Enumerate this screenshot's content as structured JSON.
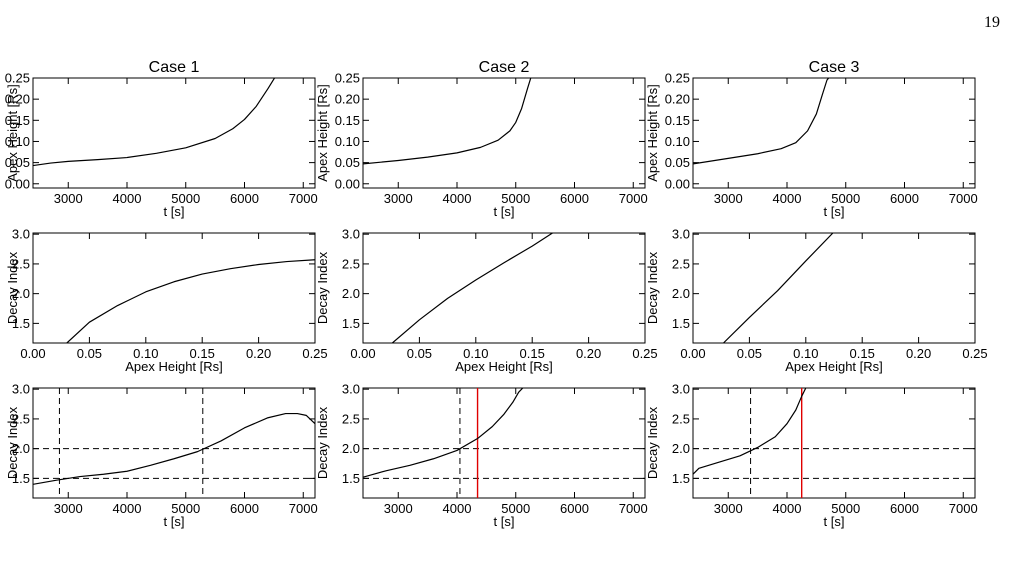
{
  "page": {
    "number": "19"
  },
  "chart_data": [
    {
      "type": "line",
      "panel": "case1-height",
      "title": "Case 1",
      "xlabel": "t [s]",
      "ylabel": "Apex Height [Rs]",
      "xlim": [
        2400,
        7200
      ],
      "ylim": [
        -0.01,
        0.25
      ],
      "xticks": [
        "3000",
        "4000",
        "5000",
        "6000",
        "7000"
      ],
      "yticks": [
        "0.00",
        "0.05",
        "0.10",
        "0.15",
        "0.20",
        "0.25"
      ],
      "series": [
        {
          "color": "#000000",
          "dash": "solid",
          "x": [
            2400,
            2700,
            3000,
            3500,
            4000,
            4500,
            5000,
            5500,
            5800,
            6000,
            6200,
            6400,
            6520
          ],
          "y": [
            0.043,
            0.049,
            0.053,
            0.057,
            0.062,
            0.072,
            0.085,
            0.107,
            0.13,
            0.152,
            0.183,
            0.225,
            0.252
          ]
        }
      ]
    },
    {
      "type": "line",
      "panel": "case2-height",
      "title": "Case 2",
      "xlabel": "t [s]",
      "ylabel": "Apex Height [Rs]",
      "xlim": [
        2400,
        7200
      ],
      "ylim": [
        -0.01,
        0.25
      ],
      "xticks": [
        "3000",
        "4000",
        "5000",
        "6000",
        "7000"
      ],
      "yticks": [
        "0.00",
        "0.05",
        "0.10",
        "0.15",
        "0.20",
        "0.25"
      ],
      "series": [
        {
          "color": "#000000",
          "dash": "solid",
          "x": [
            2400,
            3000,
            3500,
            4000,
            4400,
            4700,
            4900,
            5000,
            5100,
            5200,
            5260
          ],
          "y": [
            0.047,
            0.055,
            0.063,
            0.073,
            0.086,
            0.103,
            0.125,
            0.145,
            0.178,
            0.225,
            0.252
          ]
        }
      ]
    },
    {
      "type": "line",
      "panel": "case3-height",
      "title": "Case 3",
      "xlabel": "t [s]",
      "ylabel": "Apex Height [Rs]",
      "xlim": [
        2400,
        7200
      ],
      "ylim": [
        -0.01,
        0.25
      ],
      "xticks": [
        "3000",
        "4000",
        "5000",
        "6000",
        "7000"
      ],
      "yticks": [
        "0.00",
        "0.05",
        "0.10",
        "0.15",
        "0.20",
        "0.25"
      ],
      "series": [
        {
          "color": "#000000",
          "dash": "solid",
          "x": [
            2400,
            3000,
            3500,
            3900,
            4150,
            4350,
            4500,
            4600,
            4680,
            4720
          ],
          "y": [
            0.047,
            0.06,
            0.071,
            0.083,
            0.097,
            0.125,
            0.165,
            0.21,
            0.245,
            0.252
          ]
        }
      ]
    },
    {
      "type": "line",
      "panel": "case1-decay",
      "title": "",
      "xlabel": "Apex Height [Rs]",
      "ylabel": "Decay Index",
      "xlim": [
        0.0,
        0.25
      ],
      "ylim": [
        1.17,
        3.02
      ],
      "xticks": [
        "0.00",
        "0.05",
        "0.10",
        "0.15",
        "0.20",
        "0.25"
      ],
      "yticks": [
        "1.5",
        "2.0",
        "2.5",
        "3.0"
      ],
      "series": [
        {
          "color": "#000000",
          "dash": "solid",
          "x": [
            0.03,
            0.05,
            0.075,
            0.1,
            0.125,
            0.15,
            0.175,
            0.2,
            0.225,
            0.25
          ],
          "y": [
            1.17,
            1.52,
            1.8,
            2.03,
            2.2,
            2.33,
            2.42,
            2.49,
            2.54,
            2.57
          ]
        }
      ]
    },
    {
      "type": "line",
      "panel": "case2-decay",
      "title": "",
      "xlabel": "Apex Height [Rs]",
      "ylabel": "Decay Index",
      "xlim": [
        0.0,
        0.25
      ],
      "ylim": [
        1.17,
        3.02
      ],
      "xticks": [
        "0.00",
        "0.05",
        "0.10",
        "0.15",
        "0.20",
        "0.25"
      ],
      "yticks": [
        "1.5",
        "2.0",
        "2.5",
        "3.0"
      ],
      "series": [
        {
          "color": "#000000",
          "dash": "solid",
          "x": [
            0.026,
            0.05,
            0.075,
            0.1,
            0.125,
            0.15,
            0.168
          ],
          "y": [
            1.17,
            1.56,
            1.92,
            2.23,
            2.52,
            2.8,
            3.02
          ]
        }
      ]
    },
    {
      "type": "line",
      "panel": "case3-decay",
      "title": "",
      "xlabel": "Apex Height [Rs]",
      "ylabel": "Decay Index",
      "xlim": [
        0.0,
        0.25
      ],
      "ylim": [
        1.17,
        3.02
      ],
      "xticks": [
        "0.00",
        "0.05",
        "0.10",
        "0.15",
        "0.20",
        "0.25"
      ],
      "yticks": [
        "1.5",
        "2.0",
        "2.5",
        "3.0"
      ],
      "series": [
        {
          "color": "#000000",
          "dash": "solid",
          "x": [
            0.027,
            0.05,
            0.075,
            0.1,
            0.124
          ],
          "y": [
            1.17,
            1.6,
            2.05,
            2.55,
            3.02
          ]
        }
      ]
    },
    {
      "type": "line",
      "panel": "case1-time",
      "title": "",
      "xlabel": "t [s]",
      "ylabel": "Decay Index",
      "xlim": [
        2400,
        7200
      ],
      "ylim": [
        1.17,
        3.02
      ],
      "xticks": [
        "3000",
        "4000",
        "5000",
        "6000",
        "7000"
      ],
      "yticks": [
        "1.5",
        "2.0",
        "2.5",
        "3.0"
      ],
      "series": [
        {
          "color": "#000000",
          "dash": "solid",
          "x": [
            2400,
            2800,
            3200,
            3600,
            4000,
            4400,
            4800,
            5200,
            5600,
            6000,
            6400,
            6700,
            6900,
            7050,
            7200
          ],
          "y": [
            1.4,
            1.47,
            1.53,
            1.57,
            1.62,
            1.72,
            1.83,
            1.95,
            2.13,
            2.35,
            2.52,
            2.59,
            2.59,
            2.56,
            2.42
          ]
        }
      ],
      "reference_lines": [
        {
          "orientation": "horizontal",
          "value": 1.5,
          "color": "#000000",
          "dash": "dashed"
        },
        {
          "orientation": "horizontal",
          "value": 2.0,
          "color": "#000000",
          "dash": "dashed"
        },
        {
          "orientation": "vertical",
          "value": 2850,
          "color": "#000000",
          "dash": "dashed"
        },
        {
          "orientation": "vertical",
          "value": 5290,
          "color": "#000000",
          "dash": "dashed"
        }
      ]
    },
    {
      "type": "line",
      "panel": "case2-time",
      "title": "",
      "xlabel": "t [s]",
      "ylabel": "Decay Index",
      "xlim": [
        2400,
        7200
      ],
      "ylim": [
        1.17,
        3.02
      ],
      "xticks": [
        "3000",
        "4000",
        "5000",
        "6000",
        "7000"
      ],
      "yticks": [
        "1.5",
        "2.0",
        "2.5",
        "3.0"
      ],
      "series": [
        {
          "color": "#000000",
          "dash": "solid",
          "x": [
            2400,
            2800,
            3200,
            3600,
            4000,
            4350,
            4600,
            4800,
            4950,
            5050,
            5120
          ],
          "y": [
            1.52,
            1.63,
            1.72,
            1.83,
            1.97,
            2.17,
            2.37,
            2.58,
            2.78,
            2.95,
            3.02
          ]
        }
      ],
      "reference_lines": [
        {
          "orientation": "horizontal",
          "value": 1.5,
          "color": "#000000",
          "dash": "dashed"
        },
        {
          "orientation": "horizontal",
          "value": 2.0,
          "color": "#000000",
          "dash": "dashed"
        },
        {
          "orientation": "vertical",
          "value": 4050,
          "color": "#000000",
          "dash": "dashed"
        },
        {
          "orientation": "vertical",
          "value": 4350,
          "color": "#e00000",
          "dash": "solid"
        }
      ]
    },
    {
      "type": "line",
      "panel": "case3-time",
      "title": "",
      "xlabel": "t [s]",
      "ylabel": "Decay Index",
      "xlim": [
        2400,
        7200
      ],
      "ylim": [
        1.17,
        3.02
      ],
      "xticks": [
        "3000",
        "4000",
        "5000",
        "6000",
        "7000"
      ],
      "yticks": [
        "1.5",
        "2.0",
        "2.5",
        "3.0"
      ],
      "series": [
        {
          "color": "#000000",
          "dash": "solid",
          "x": [
            2400,
            2500,
            2800,
            3200,
            3500,
            3800,
            4000,
            4150,
            4250,
            4320
          ],
          "y": [
            1.57,
            1.67,
            1.76,
            1.88,
            2.02,
            2.2,
            2.42,
            2.65,
            2.88,
            3.02
          ]
        }
      ],
      "reference_lines": [
        {
          "orientation": "horizontal",
          "value": 1.5,
          "color": "#000000",
          "dash": "dashed"
        },
        {
          "orientation": "horizontal",
          "value": 2.0,
          "color": "#000000",
          "dash": "dashed"
        },
        {
          "orientation": "vertical",
          "value": 3380,
          "color": "#000000",
          "dash": "dashed"
        },
        {
          "orientation": "vertical",
          "value": 4250,
          "color": "#e00000",
          "dash": "solid"
        }
      ]
    }
  ]
}
